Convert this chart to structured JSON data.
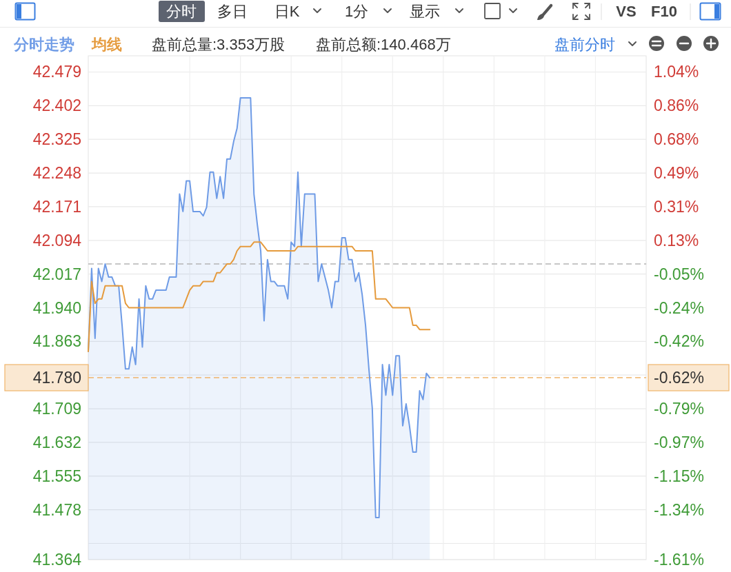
{
  "chart_data": {
    "type": "area",
    "annotations": [
      "分时",
      "多日",
      "日K",
      "1分",
      "显示",
      "VS",
      "F10",
      "盘前总量:3.353万股",
      "盘前总额:140.468万",
      "盘前分时",
      "-0.62%"
    ],
    "categories": [
      null,
      null,
      null,
      null,
      null,
      null,
      null,
      null,
      null,
      null,
      null,
      null,
      null,
      null,
      null,
      null,
      null,
      null,
      null,
      null,
      null,
      null,
      null,
      null,
      null,
      null,
      null,
      null,
      null,
      null,
      null,
      null,
      null,
      null,
      null,
      null,
      null,
      null,
      null,
      null,
      null,
      null,
      null,
      null,
      null,
      null,
      null,
      null,
      null,
      null,
      null,
      null,
      null,
      null,
      null,
      null,
      null,
      null,
      null,
      null,
      null,
      null,
      null,
      null,
      null,
      null,
      null,
      null,
      null,
      null,
      null,
      null,
      null,
      null,
      null,
      null,
      null,
      null,
      null,
      null,
      null,
      null,
      null,
      null,
      null,
      null,
      null,
      null,
      null,
      null,
      null,
      null,
      null,
      null,
      null,
      null,
      null,
      null,
      null,
      null,
      null,
      null,
      null,
      null,
      null,
      null,
      null,
      null,
      null,
      null,
      null,
      null,
      null,
      null,
      null,
      null,
      null,
      null,
      null,
      null,
      null,
      null,
      null,
      null,
      null,
      null,
      null,
      null,
      null,
      null,
      null,
      null,
      null,
      null,
      null,
      null,
      null,
      null,
      null,
      null,
      null,
      null,
      null,
      null,
      null,
      null,
      null,
      null,
      null,
      null,
      null,
      null,
      null,
      null,
      null,
      null,
      null,
      null,
      null,
      null,
      null,
      null,
      null,
      null,
      null,
      null
    ],
    "series": [
      {
        "name": "分时走势",
        "type": "area",
        "color": "#6e9be6",
        "values": [
          41.84,
          42.03,
          41.87,
          42.03,
          42.0,
          42.04,
          42.01,
          42.01,
          41.99,
          41.99,
          41.9,
          41.8,
          41.8,
          41.85,
          41.81,
          41.96,
          41.85,
          41.99,
          41.96,
          41.96,
          41.98,
          41.98,
          41.98,
          41.98,
          42.01,
          42.01,
          42.01,
          42.2,
          42.16,
          42.23,
          42.23,
          42.16,
          42.16,
          42.16,
          42.15,
          42.17,
          42.25,
          42.25,
          42.19,
          42.24,
          42.19,
          42.28,
          42.28,
          42.32,
          42.35,
          42.42,
          42.42,
          42.42,
          42.42,
          42.2,
          42.13,
          42.07,
          41.91,
          42.05,
          42.0,
          42.0,
          41.99,
          41.99,
          41.99,
          41.96,
          42.09,
          42.08,
          42.25,
          42.08,
          42.2,
          42.2,
          42.2,
          42.2,
          42.0,
          42.04,
          42.01,
          41.98,
          41.94,
          42.0,
          42.0,
          42.1,
          42.1,
          42.05,
          42.05,
          42.0,
          42.02,
          41.97,
          41.9,
          41.8,
          41.71,
          41.46,
          41.46,
          41.81,
          41.74,
          41.81,
          41.74,
          41.83,
          41.83,
          41.67,
          41.72,
          41.67,
          41.61,
          41.61,
          41.75,
          41.73,
          41.79,
          41.78,
          null,
          null,
          null,
          null,
          null,
          null,
          null,
          null,
          null,
          null,
          null,
          null,
          null,
          null,
          null,
          null,
          null,
          null,
          null,
          null,
          null,
          null,
          null,
          null,
          null,
          null,
          null,
          null,
          null,
          null,
          null,
          null,
          null,
          null,
          null,
          null,
          null,
          null,
          null,
          null,
          null,
          null,
          null,
          null,
          null,
          null,
          null,
          null,
          null,
          null,
          null,
          null,
          null,
          null,
          null,
          null,
          null,
          null,
          null,
          null,
          null,
          null,
          null,
          null
        ]
      },
      {
        "name": "均线",
        "type": "line",
        "color": "#e59a3c",
        "values": [
          41.84,
          42.0,
          41.95,
          41.96,
          41.96,
          41.99,
          41.99,
          41.99,
          41.99,
          41.99,
          41.99,
          41.95,
          41.94,
          41.94,
          41.94,
          41.94,
          41.94,
          41.94,
          41.94,
          41.94,
          41.94,
          41.94,
          41.94,
          41.94,
          41.94,
          41.94,
          41.94,
          41.94,
          41.94,
          41.96,
          41.98,
          41.99,
          41.99,
          41.99,
          42.0,
          42.0,
          42.0,
          42.0,
          42.02,
          42.02,
          42.03,
          42.04,
          42.04,
          42.05,
          42.07,
          42.08,
          42.08,
          42.08,
          42.08,
          42.09,
          42.09,
          42.09,
          42.08,
          42.07,
          42.07,
          42.07,
          42.07,
          42.07,
          42.07,
          42.07,
          42.07,
          42.07,
          42.08,
          42.08,
          42.08,
          42.08,
          42.08,
          42.08,
          42.08,
          42.08,
          42.08,
          42.08,
          42.08,
          42.08,
          42.08,
          42.08,
          42.08,
          42.08,
          42.08,
          42.07,
          42.07,
          42.07,
          42.07,
          42.07,
          42.07,
          41.96,
          41.96,
          41.96,
          41.96,
          41.95,
          41.94,
          41.94,
          41.94,
          41.94,
          41.94,
          41.94,
          41.9,
          41.9,
          41.89,
          41.89,
          41.89,
          41.89,
          null,
          null,
          null,
          null,
          null,
          null,
          null,
          null,
          null,
          null,
          null,
          null,
          null,
          null,
          null,
          null,
          null,
          null,
          null,
          null,
          null,
          null,
          null,
          null,
          null,
          null,
          null,
          null,
          null,
          null,
          null,
          null,
          null,
          null,
          null,
          null,
          null,
          null,
          null,
          null,
          null,
          null,
          null,
          null,
          null,
          null,
          null,
          null,
          null,
          null,
          null,
          null,
          null,
          null,
          null,
          null,
          null,
          null,
          null,
          null,
          null,
          null,
          null,
          null
        ]
      }
    ],
    "ylim": [
      41.364,
      42.516
    ],
    "yticks": [
      42.479,
      42.402,
      42.325,
      42.248,
      42.171,
      42.094,
      42.017,
      {
        "value": 41.94,
        "label": "41.940"
      },
      41.863,
      {
        "value": 41.786,
        "label": null
      },
      41.709,
      41.632,
      41.555,
      41.478,
      {
        "value": 41.401,
        "label": null
      },
      41.364
    ],
    "y2lim": [
      -1.608,
      1.132
    ],
    "y2ticks": [
      {
        "value": 1.044,
        "label": "1.04%"
      },
      {
        "value": 0.861,
        "label": "0.86%"
      },
      {
        "value": 0.678,
        "label": "0.68%"
      },
      {
        "value": 0.495,
        "label": "0.49%"
      },
      {
        "value": 0.312,
        "label": "0.31%"
      },
      {
        "value": 0.128,
        "label": "0.13%"
      },
      {
        "value": -0.055,
        "label": "-0.05%"
      },
      {
        "value": -0.238,
        "label": "-0.24%"
      },
      {
        "value": -0.421,
        "label": "-0.42%"
      },
      {
        "value": -0.787,
        "label": "-0.79%"
      },
      {
        "value": -0.971,
        "label": "-0.97%"
      },
      {
        "value": -1.154,
        "label": "-1.15%"
      },
      {
        "value": -1.337,
        "label": "-1.34%"
      },
      {
        "value": -1.608,
        "label": "-1.61%"
      }
    ],
    "ref_lines": [
      {
        "axis": "y",
        "value": 42.04,
        "color": "#b4b4b4",
        "line_style": "dashed"
      },
      {
        "axis": "y",
        "value": 41.78,
        "label": "41.780",
        "color": "#f0b46a",
        "line_style": "dashed"
      }
    ],
    "grid": true,
    "legend": "top left"
  }
}
